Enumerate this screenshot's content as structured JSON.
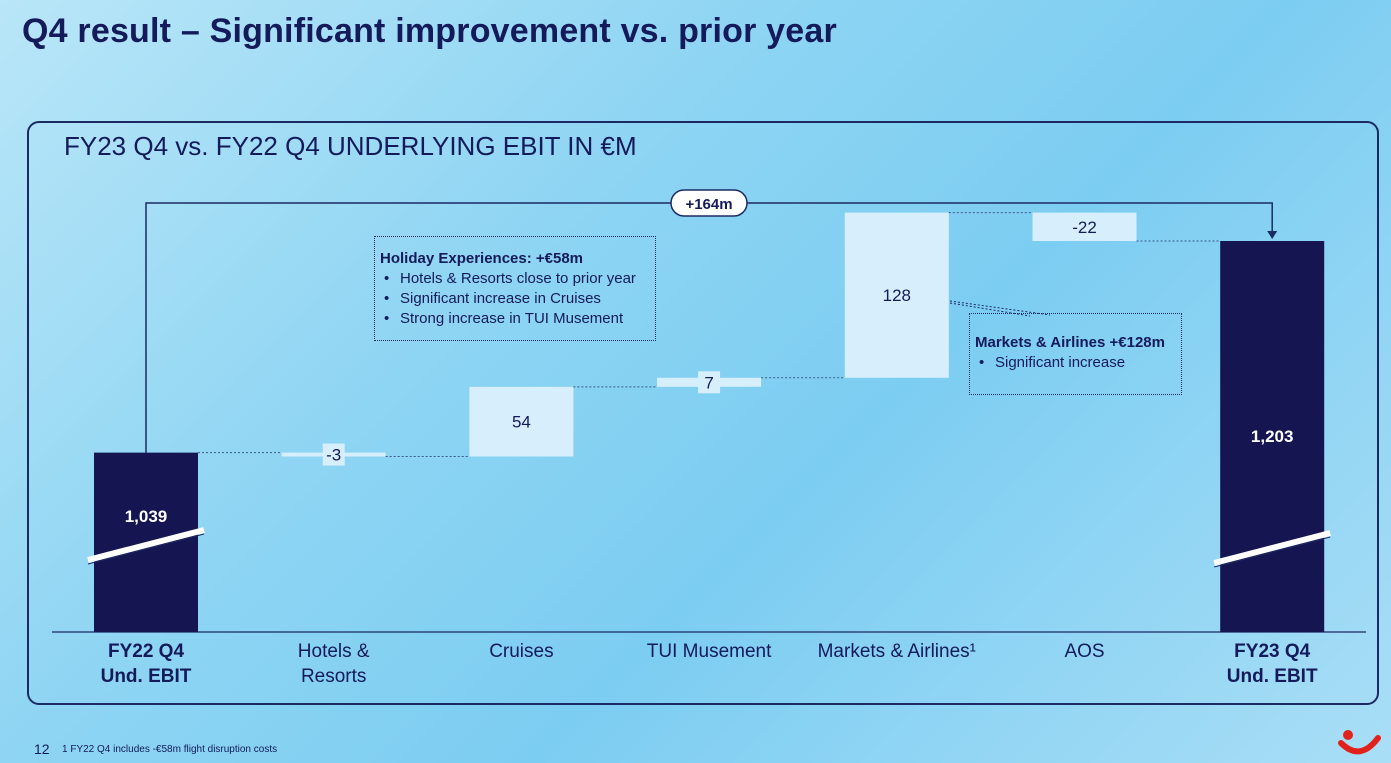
{
  "slide": {
    "title": "Q4 result – Significant improvement vs. prior year",
    "page_number": "12",
    "footnote": "1 FY22 Q4  includes -€58m flight disruption costs"
  },
  "colors": {
    "total_bar": "#151552",
    "delta_bar": "#d7effc",
    "text_dark": "#141a5a"
  },
  "chart_data": {
    "type": "bar",
    "subtype": "waterfall",
    "title": "FY23 Q4 vs. FY22 Q4 UNDERLYING EBIT IN €M",
    "categories": [
      [
        "FY22 Q4",
        "Und. EBIT"
      ],
      [
        "Hotels &",
        "Resorts"
      ],
      [
        "Cruises"
      ],
      [
        "TUI Musement"
      ],
      [
        "Markets & Airlines¹"
      ],
      [
        "AOS"
      ],
      [
        "FY23 Q4",
        "Und. EBIT"
      ]
    ],
    "bold_categories": [
      0,
      6
    ],
    "values": [
      1039,
      -3,
      54,
      7,
      128,
      -22,
      1203
    ],
    "value_labels": [
      "1,039",
      "-3",
      "54",
      "7",
      "128",
      "-22",
      "1,203"
    ],
    "is_total": [
      true,
      false,
      false,
      false,
      false,
      false,
      true
    ],
    "axis_break": true,
    "overall_change_label": "+164m",
    "ylim": [
      900,
      1215
    ]
  },
  "callouts": {
    "holiday": {
      "heading": "Holiday Experiences: +€58m",
      "items": [
        "Hotels & Resorts close to prior year",
        "Significant increase in Cruises",
        "Strong increase in TUI Musement"
      ]
    },
    "markets": {
      "heading": "Markets & Airlines +€128m",
      "items": [
        "Significant increase"
      ]
    }
  },
  "logo": {
    "icon": "tui-smile-logo"
  }
}
